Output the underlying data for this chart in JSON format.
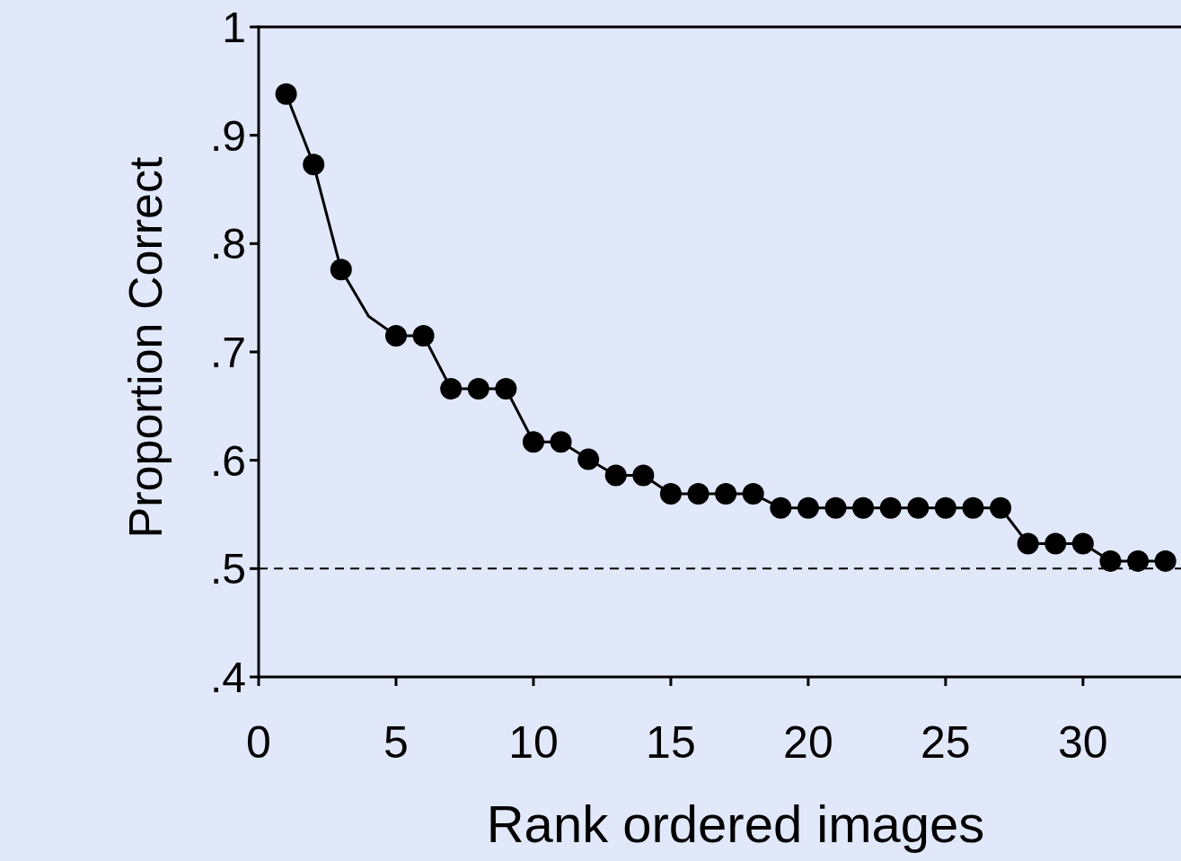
{
  "chart_data": {
    "type": "line",
    "xlabel": "Rank ordered images",
    "ylabel": "Proportion Correct",
    "x": [
      1,
      2,
      3,
      4,
      5,
      6,
      7,
      8,
      9,
      10,
      11,
      12,
      13,
      14,
      15,
      16,
      17,
      18,
      19,
      20,
      21,
      22,
      23,
      24,
      25,
      26,
      27,
      28,
      29,
      30,
      31,
      32,
      33
    ],
    "series": [
      {
        "color": "#000000",
        "marker": "none",
        "line_style": "solid",
        "values": [
          0.938,
          0.873,
          0.776,
          0.733,
          0.715,
          0.715,
          0.666,
          0.666,
          0.666,
          0.617,
          0.617,
          0.601,
          0.586,
          0.586,
          0.569,
          0.569,
          0.569,
          0.569,
          0.556,
          0.556,
          0.556,
          0.556,
          0.556,
          0.556,
          0.556,
          0.556,
          0.556,
          0.523,
          0.523,
          0.523,
          0.507,
          0.507,
          0.507
        ]
      },
      {
        "type": "scatter",
        "color": "#000000",
        "marker": "circle",
        "values": [
          0.938,
          0.873,
          0.776,
          null,
          0.715,
          0.715,
          0.666,
          0.666,
          0.666,
          0.617,
          0.617,
          0.601,
          0.586,
          0.586,
          0.569,
          0.569,
          0.569,
          0.569,
          0.556,
          0.556,
          0.556,
          0.556,
          0.556,
          0.556,
          0.556,
          0.556,
          0.556,
          0.523,
          0.523,
          0.523,
          0.507,
          0.507,
          0.507
        ]
      }
    ],
    "xlim": [
      0,
      33.6
    ],
    "ylim": [
      0.4,
      1
    ],
    "xticks": [
      0,
      5,
      10,
      15,
      20,
      25,
      30
    ],
    "yticks": [
      {
        "value": 0.4,
        "label": ".4"
      },
      {
        "value": 0.5,
        "label": ".5"
      },
      {
        "value": 0.6,
        "label": ".6"
      },
      {
        "value": 0.7,
        "label": ".7"
      },
      {
        "value": 0.8,
        "label": ".8"
      },
      {
        "value": 0.9,
        "label": ".9"
      },
      1
    ],
    "ref_lines": [
      {
        "axis": "y",
        "value": 0.5,
        "line_style": "dashed",
        "color": "#000000"
      }
    ],
    "grid": false
  }
}
